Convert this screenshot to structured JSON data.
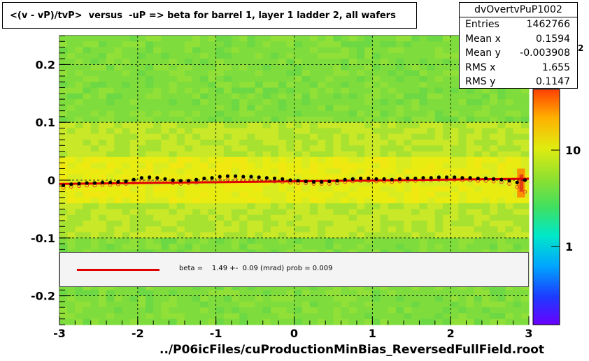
{
  "title": "<(v - vP)/tvP>  versus  -uP => beta for barrel 1, layer 1 ladder 2, all wafers",
  "stats": {
    "name": "dvOvertvPuP1002",
    "rows": [
      {
        "label": "Entries",
        "value": "1462766"
      },
      {
        "label": "Mean x",
        "value": "0.1594"
      },
      {
        "label": "Mean y",
        "value": "-0.003908"
      },
      {
        "label": "RMS x",
        "value": "1.655"
      },
      {
        "label": "RMS y",
        "value": "0.1147"
      }
    ]
  },
  "legend": {
    "text": "beta =    1.49 +-  0.09 (mrad) prob = 0.009",
    "line_color": "#e00000"
  },
  "colorbar": {
    "exponent_label": "2",
    "tick_labels": [
      "1",
      "10"
    ]
  },
  "chart_data": {
    "type": "heatmap",
    "title": "<(v - vP)/tvP>  versus  -uP => beta for barrel 1, layer 1 ladder 2, all wafers",
    "xlabel": "../P06icFiles/cuProductionMinBias_ReversedFullField.root",
    "ylabel": "",
    "xlim": [
      -3,
      3
    ],
    "ylim": [
      -0.25,
      0.25
    ],
    "x_ticks": [
      -3,
      -2,
      -1,
      0,
      1,
      2,
      3
    ],
    "x_tick_labels": [
      "-3",
      "-2",
      "-1",
      "0",
      "1",
      "2",
      "3"
    ],
    "y_ticks": [
      -0.2,
      -0.1,
      0,
      0.1,
      0.2
    ],
    "y_tick_labels": [
      "-0.2",
      "-0.1",
      "0",
      "0.1",
      "0.2"
    ],
    "grid": true,
    "colorbar_scale": "log",
    "colors": {
      "background": "#7edc3c",
      "band": "#d8ec20",
      "hot": "#e04010",
      "fit": "#e00000",
      "points": "#000000"
    },
    "fit": {
      "name": "beta",
      "slope": 0.00149,
      "intercept": -0.002
    },
    "profile": {
      "x": [
        -2.95,
        -2.85,
        -2.75,
        -2.65,
        -2.55,
        -2.45,
        -2.35,
        -2.25,
        -2.15,
        -2.05,
        -1.95,
        -1.85,
        -1.75,
        -1.65,
        -1.55,
        -1.45,
        -1.35,
        -1.25,
        -1.15,
        -1.05,
        -0.95,
        -0.85,
        -0.75,
        -0.65,
        -0.55,
        -0.45,
        -0.35,
        -0.25,
        -0.15,
        -0.05,
        0.05,
        0.15,
        0.25,
        0.35,
        0.45,
        0.55,
        0.65,
        0.75,
        0.85,
        0.95,
        1.05,
        1.15,
        1.25,
        1.35,
        1.45,
        1.55,
        1.65,
        1.75,
        1.85,
        1.95,
        2.05,
        2.15,
        2.25,
        2.35,
        2.45,
        2.55,
        2.65,
        2.75,
        2.85,
        2.95
      ],
      "y": [
        -0.009,
        -0.007,
        -0.006,
        -0.005,
        -0.005,
        -0.004,
        -0.004,
        -0.003,
        -0.002,
        0.001,
        0.004,
        0.005,
        0.004,
        0.002,
        0.0,
        -0.001,
        -0.001,
        0.001,
        0.003,
        0.004,
        0.006,
        0.007,
        0.007,
        0.006,
        0.006,
        0.005,
        0.004,
        0.003,
        0.002,
        0.0,
        -0.001,
        -0.002,
        -0.003,
        -0.003,
        -0.002,
        -0.001,
        0.001,
        0.002,
        0.003,
        0.003,
        0.002,
        0.002,
        0.001,
        0.002,
        0.003,
        0.003,
        0.004,
        0.004,
        0.005,
        0.005,
        0.005,
        0.004,
        0.004,
        0.003,
        0.003,
        0.002,
        0.001,
        -0.001,
        -0.004,
        0.0
      ],
      "y_alt": [
        -0.013,
        -0.011,
        -0.01,
        -0.009,
        -0.009,
        -0.008,
        -0.008,
        -0.007,
        -0.006,
        -0.004,
        -0.002,
        -0.001,
        -0.002,
        -0.003,
        -0.005,
        -0.006,
        -0.005,
        -0.004,
        -0.002,
        -0.001,
        0.0,
        0.001,
        0.001,
        0.001,
        0.001,
        0.0,
        -0.001,
        -0.002,
        -0.003,
        -0.004,
        -0.005,
        -0.005,
        -0.006,
        -0.006,
        -0.006,
        -0.005,
        -0.003,
        -0.002,
        -0.001,
        -0.001,
        -0.002,
        -0.002,
        -0.003,
        -0.002,
        -0.001,
        -0.001,
        0.0,
        0.0,
        0.001,
        0.001,
        0.001,
        0.0,
        0.0,
        -0.001,
        -0.001,
        -0.002,
        -0.003,
        -0.006,
        -0.012,
        -0.02
      ]
    }
  }
}
